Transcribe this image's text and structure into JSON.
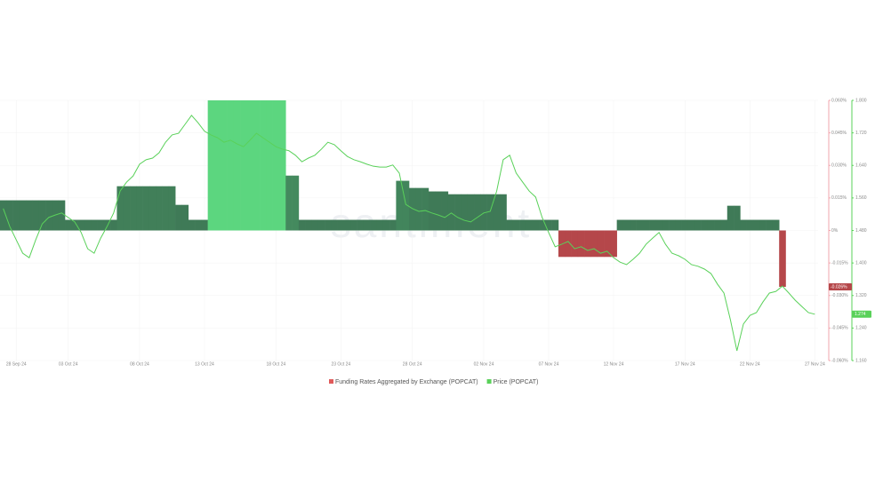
{
  "chart_data": {
    "type": "bar-line",
    "watermark": "santiment",
    "categories": [
      null,
      null,
      "28 Sep 24",
      null,
      null,
      null,
      null,
      null,
      null,
      null,
      "03 Oct 24",
      null,
      null,
      null,
      null,
      null,
      null,
      null,
      null,
      null,
      null,
      "08 Oct 24",
      null,
      null,
      null,
      null,
      null,
      null,
      null,
      null,
      null,
      "13 Oct 24",
      null,
      null,
      null,
      null,
      null,
      null,
      null,
      null,
      null,
      null,
      "18 Oct 24",
      null,
      null,
      null,
      null,
      null,
      null,
      null,
      null,
      null,
      "23 Oct 24",
      null,
      null,
      null,
      null,
      null,
      null,
      null,
      null,
      null,
      null,
      "28 Oct 24",
      null,
      null,
      null,
      null,
      null,
      null,
      null,
      null,
      null,
      null,
      "02 Nov 24",
      null,
      null,
      null,
      null,
      null,
      null,
      null,
      null,
      null,
      "07 Nov 24",
      null,
      null,
      null,
      null,
      null,
      null,
      null,
      null,
      null,
      "12 Nov 24",
      null,
      null,
      null,
      null,
      null,
      null,
      null,
      null,
      null,
      null,
      "17 Nov 24",
      null,
      null,
      null,
      null,
      null,
      null,
      null,
      null,
      null,
      "22 Nov 24",
      null,
      null,
      null,
      null,
      null,
      null,
      null,
      null,
      null,
      "27 Nov 24"
    ],
    "series": [
      {
        "name": "Funding Rates Aggregated by Exchange (POPCAT)",
        "kind": "bar",
        "axis": "y",
        "color": "#3f7a57",
        "peak_color": "#5cd67f",
        "negative_color": "#b5474a",
        "legend_color": "#e05a5a",
        "axis_color": "#f2a6ae",
        "last_label": "-0.026%",
        "values": [
          0.0139,
          0.0139,
          0.0139,
          0.0139,
          0.0139,
          0.0139,
          0.0139,
          0.0139,
          0.0139,
          0.0139,
          0.0049,
          0.0049,
          0.0049,
          0.0049,
          0.0049,
          0.0049,
          0.0049,
          0.0049,
          0.0204,
          0.0204,
          0.0204,
          0.0204,
          0.0204,
          0.0204,
          0.0204,
          0.0204,
          0.0204,
          0.0118,
          0.0118,
          0.0049,
          0.0049,
          0.0049,
          0.06,
          0.06,
          0.06,
          0.06,
          0.06,
          0.06,
          0.06,
          0.06,
          0.06,
          0.06,
          0.06,
          0.06,
          0.0253,
          0.0253,
          0.0049,
          0.0049,
          0.0049,
          0.0049,
          0.0049,
          0.0049,
          0.0049,
          0.0049,
          0.0049,
          0.0049,
          0.0049,
          0.0049,
          0.0049,
          0.0049,
          0.0049,
          0.0229,
          0.0229,
          0.0196,
          0.0196,
          0.0196,
          0.018,
          0.018,
          0.018,
          0.0167,
          0.0167,
          0.0167,
          0.0167,
          0.0167,
          0.0167,
          0.0167,
          0.0167,
          0.0167,
          0.0049,
          0.0049,
          0.0049,
          0.0049,
          0.0049,
          0.0049,
          0.0049,
          0.0049,
          -0.0122,
          -0.0122,
          -0.0122,
          -0.0122,
          -0.0122,
          -0.0122,
          -0.0122,
          -0.0122,
          -0.0122,
          0.0049,
          0.0049,
          0.0049,
          0.0049,
          0.0049,
          0.0049,
          0.0049,
          0.0049,
          0.0049,
          0.0049,
          0.0049,
          0.0049,
          0.0049,
          0.0049,
          0.0049,
          0.0049,
          0.0049,
          0.0114,
          0.0114,
          0.0049,
          0.0049,
          0.0049,
          0.0049,
          0.0049,
          0.0049,
          -0.026,
          null,
          null,
          null,
          null,
          null
        ]
      },
      {
        "name": "Price (POPCAT)",
        "kind": "line",
        "axis": "y2",
        "color": "#5ad15a",
        "last_label": "1.274",
        "values": [
          1.534,
          1.49,
          1.457,
          1.424,
          1.413,
          1.457,
          1.496,
          1.512,
          1.518,
          1.523,
          1.512,
          1.501,
          1.475,
          1.435,
          1.424,
          1.461,
          1.49,
          1.523,
          1.577,
          1.599,
          1.614,
          1.643,
          1.654,
          1.658,
          1.671,
          1.697,
          1.715,
          1.719,
          1.741,
          1.763,
          1.745,
          1.724,
          1.715,
          1.708,
          1.697,
          1.702,
          1.693,
          1.686,
          1.702,
          1.719,
          1.708,
          1.697,
          1.686,
          1.68,
          1.676,
          1.665,
          1.649,
          1.658,
          1.665,
          1.68,
          1.697,
          1.691,
          1.676,
          1.662,
          1.654,
          1.649,
          1.643,
          1.638,
          1.636,
          1.636,
          1.641,
          1.621,
          1.544,
          1.534,
          1.527,
          1.529,
          1.523,
          1.518,
          1.512,
          1.523,
          1.512,
          1.505,
          1.501,
          1.512,
          1.523,
          1.527,
          1.577,
          1.654,
          1.665,
          1.621,
          1.599,
          1.577,
          1.562,
          1.512,
          1.475,
          1.44,
          1.446,
          1.453,
          1.435,
          1.44,
          1.431,
          1.435,
          1.424,
          1.429,
          1.413,
          1.402,
          1.396,
          1.409,
          1.424,
          1.446,
          1.461,
          1.475,
          1.446,
          1.424,
          1.418,
          1.409,
          1.396,
          1.392,
          1.385,
          1.374,
          1.348,
          1.326,
          1.26,
          1.184,
          1.25,
          1.271,
          1.278,
          1.304,
          1.326,
          1.33,
          1.343,
          1.326,
          1.308,
          1.293,
          1.278,
          1.274
        ]
      }
    ],
    "ylim": [
      -0.06,
      0.06
    ],
    "yticks": [
      {
        "value": 0.06,
        "label": "0.060%"
      },
      {
        "value": 0.045,
        "label": "0.045%"
      },
      {
        "value": 0.03,
        "label": "0.030%"
      },
      {
        "value": 0.015,
        "label": "0.015%"
      },
      {
        "value": 0,
        "label": "0%"
      },
      {
        "value": -0.015,
        "label": "-0.015%"
      },
      {
        "value": -0.03,
        "label": "-0.030%"
      },
      {
        "value": -0.045,
        "label": "-0.045%"
      },
      {
        "value": -0.06,
        "label": "-0.060%"
      }
    ],
    "y2lim": [
      1.16,
      1.8
    ],
    "y2ticks": [
      {
        "value": 1.8,
        "label": "1.800"
      },
      {
        "value": 1.72,
        "label": "1.720"
      },
      {
        "value": 1.64,
        "label": "1.640"
      },
      {
        "value": 1.56,
        "label": "1.560"
      },
      {
        "value": 1.48,
        "label": "1.480"
      },
      {
        "value": 1.4,
        "label": "1.400"
      },
      {
        "value": 1.32,
        "label": "1.320"
      },
      {
        "value": 1.24,
        "label": "1.240"
      },
      {
        "value": 1.16,
        "label": "1.160"
      }
    ],
    "grid": true
  }
}
